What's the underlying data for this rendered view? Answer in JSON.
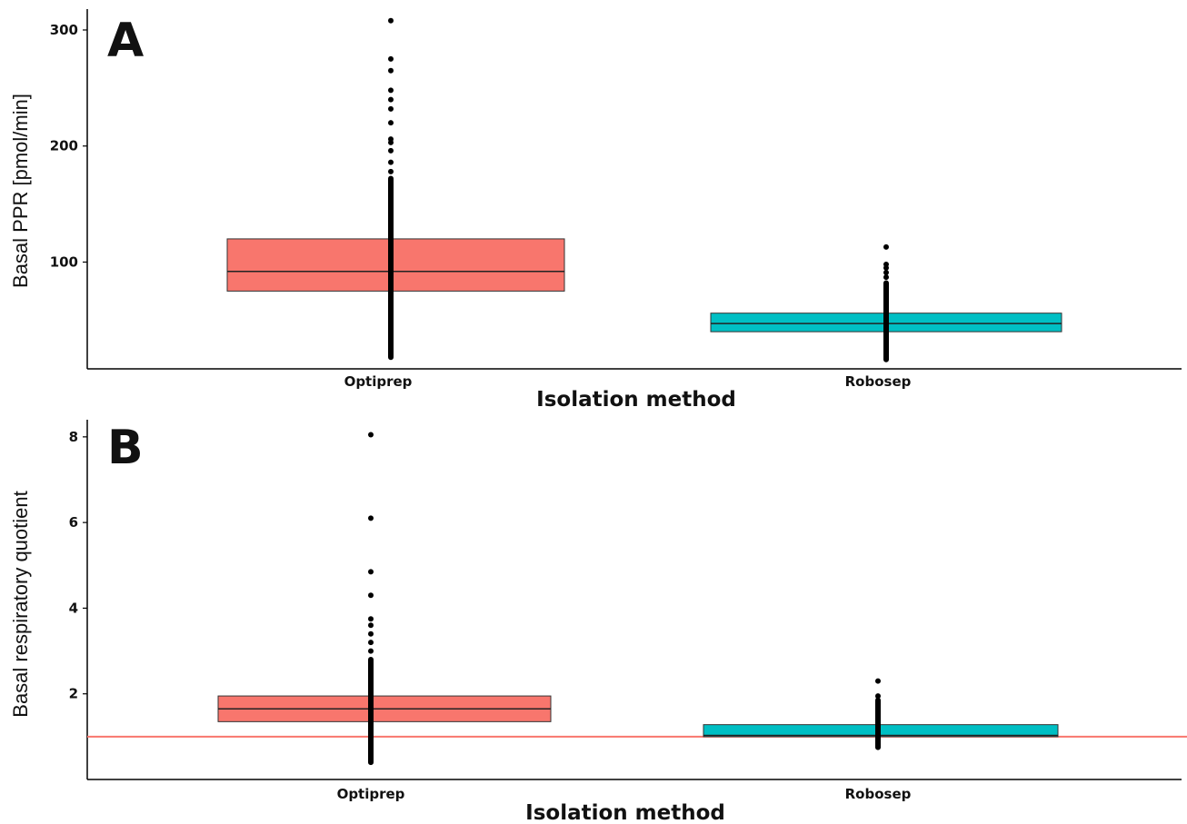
{
  "colors": {
    "optiprep_fill": "#f8766d",
    "robosep_fill": "#00bfc4",
    "point": "#000000",
    "reference_line": "#f8766d"
  },
  "chart_data": [
    {
      "type": "box",
      "panel": "A",
      "categories": [
        "Optiprep",
        "Robosep"
      ],
      "xlabel": "Isolation method",
      "ylabel": "Basal PPR [pmol/min]",
      "yticks": [
        100,
        200,
        300
      ],
      "ylim": [
        8,
        318
      ],
      "boxes": [
        {
          "category": "Optiprep",
          "q1": 75,
          "median": 92,
          "q3": 120,
          "min": 18,
          "dense_max": 172,
          "outliers": [
            178,
            186,
            196,
            203,
            206,
            220,
            232,
            240,
            248,
            265,
            275,
            308
          ]
        },
        {
          "category": "Robosep",
          "q1": 40,
          "median": 47,
          "q3": 56,
          "min": 16,
          "dense_max": 82,
          "outliers": [
            87,
            91,
            95,
            98,
            113
          ]
        }
      ]
    },
    {
      "type": "box",
      "panel": "B",
      "categories": [
        "Optiprep",
        "Robosep"
      ],
      "xlabel": "Isolation method",
      "ylabel": "Basal respiratory quotient",
      "yticks": [
        2,
        4,
        6,
        8
      ],
      "ylim": [
        0,
        8.4
      ],
      "reference_line": 1,
      "boxes": [
        {
          "category": "Optiprep",
          "q1": 1.35,
          "median": 1.65,
          "q3": 1.95,
          "min": 0.4,
          "dense_max": 2.8,
          "outliers": [
            3.0,
            3.2,
            3.4,
            3.6,
            3.75,
            4.3,
            4.85,
            6.1,
            8.05
          ]
        },
        {
          "category": "Robosep",
          "q1": 1.0,
          "median": 1.03,
          "q3": 1.28,
          "min": 0.75,
          "dense_max": 1.85,
          "outliers": [
            1.95,
            2.3
          ]
        }
      ]
    }
  ]
}
